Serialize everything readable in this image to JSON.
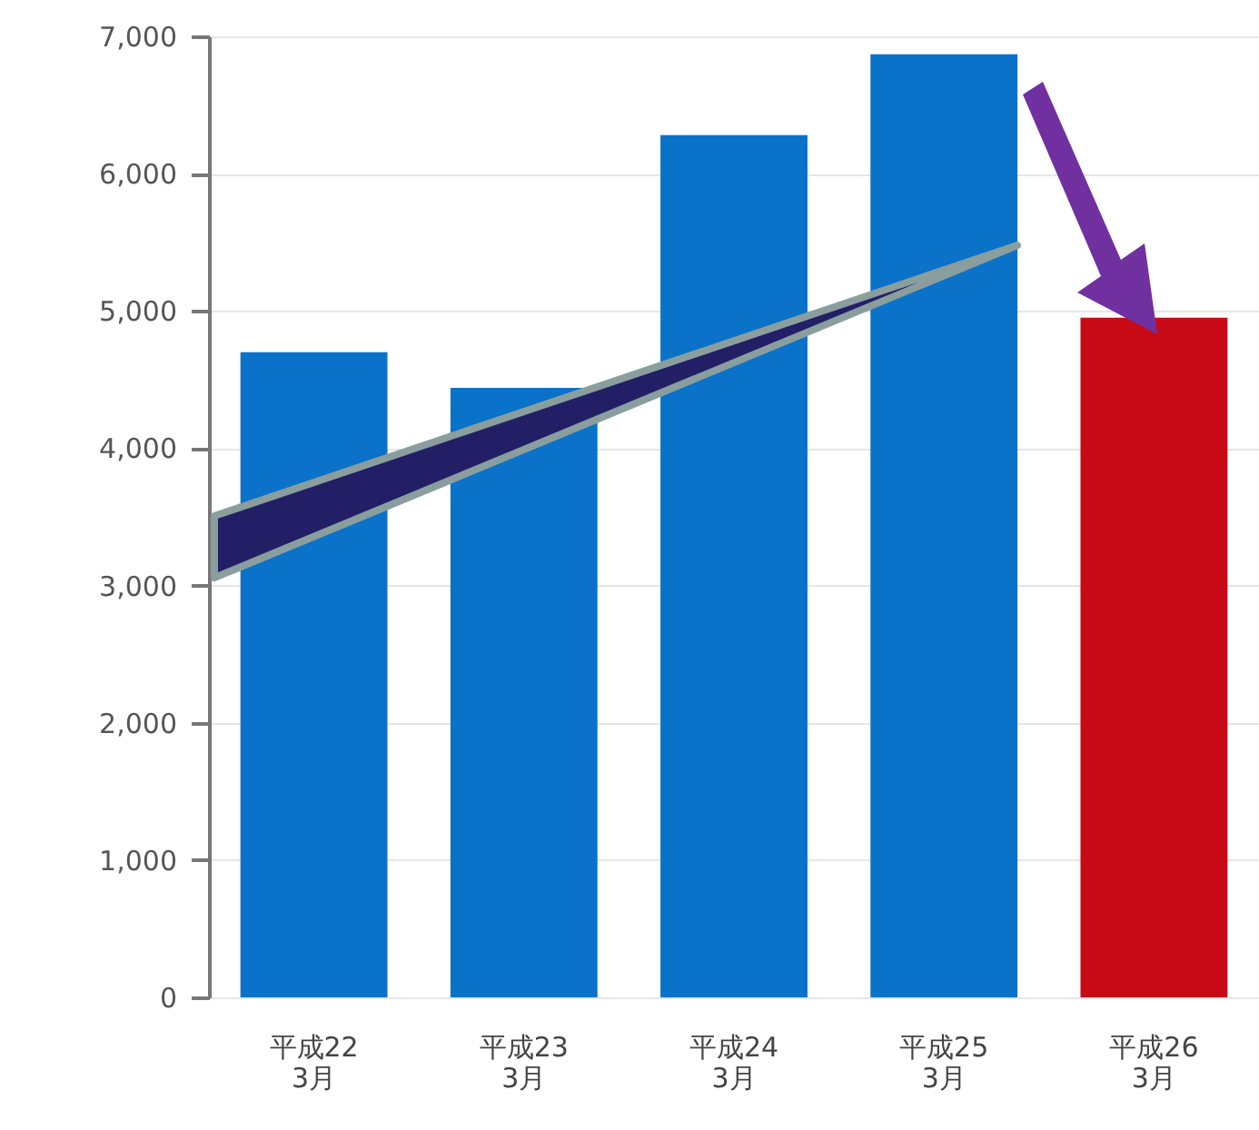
{
  "chart_data": {
    "type": "bar",
    "categories": [
      "平成22\n3月",
      "平成23\n3月",
      "平成24\n3月",
      "平成25\n3月",
      "平成26\n3月"
    ],
    "values": [
      4700,
      4440,
      6280,
      6870,
      4950
    ],
    "colors": [
      "#0a72c8",
      "#0a72c8",
      "#0a72c8",
      "#0a72c8",
      "#c80a16"
    ],
    "ylim": [
      0,
      7000
    ],
    "yticks": [
      0,
      {
        "value": 1000,
        "label": "1,000"
      },
      {
        "value": 2000,
        "label": "2,000"
      },
      {
        "value": 3000,
        "label": "3,000"
      },
      {
        "value": 4000,
        "label": "4,000"
      },
      {
        "value": 5000,
        "label": "5,000"
      },
      {
        "value": 6000,
        "label": "6,000"
      },
      {
        "value": 7000,
        "label": "7,000"
      }
    ],
    "grid": true
  }
}
